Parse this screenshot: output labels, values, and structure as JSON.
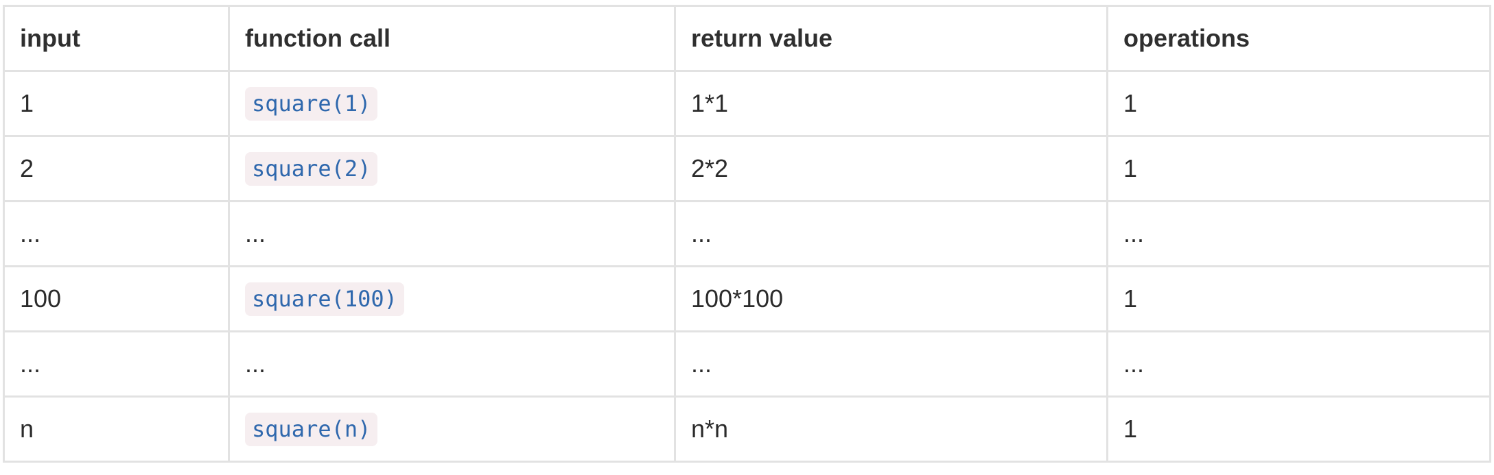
{
  "table": {
    "headers": [
      "input",
      "function call",
      "return value",
      "operations"
    ],
    "rows": [
      {
        "input": "1",
        "call": "square(1)",
        "return": "1*1",
        "ops": "1"
      },
      {
        "input": "2",
        "call": "square(2)",
        "return": "2*2",
        "ops": "1"
      },
      {
        "input": "...",
        "call": "...",
        "return": "...",
        "ops": "..."
      },
      {
        "input": "100",
        "call": "square(100)",
        "return": "100*100",
        "ops": "1"
      },
      {
        "input": "...",
        "call": "...",
        "return": "...",
        "ops": "..."
      },
      {
        "input": "n",
        "call": "square(n)",
        "return": "n*n",
        "ops": "1"
      }
    ]
  }
}
